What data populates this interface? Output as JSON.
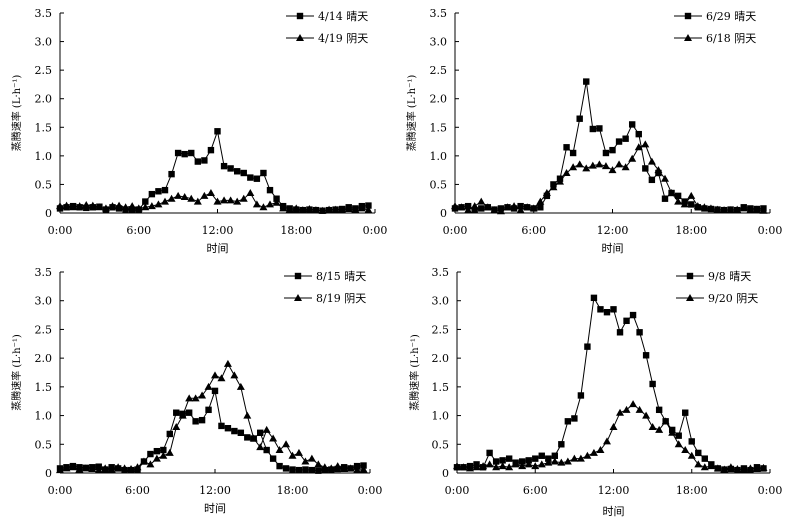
{
  "chart_data": [
    {
      "type": "line",
      "ylabel": "蒸腾速率 (L·h⁻¹)",
      "xlabel": "时间",
      "ylim": [
        0,
        3.5
      ],
      "xlim": [
        0,
        24
      ],
      "yticks": [
        "0",
        "0.5",
        "1.0",
        "1.5",
        "2.0",
        "2.5",
        "3.0",
        "3.5"
      ],
      "xticks": [
        "0:00",
        "6:00",
        "12:00",
        "18:00",
        "0:00"
      ],
      "legend": "top-right",
      "series": [
        {
          "name": "4/14 晴天",
          "marker": "square",
          "x": [
            0,
            0.5,
            1,
            1.5,
            2,
            2.5,
            3,
            3.5,
            4,
            4.5,
            5,
            5.5,
            6,
            6.5,
            7,
            7.5,
            8,
            8.5,
            9,
            9.5,
            10,
            10.5,
            11,
            11.5,
            12,
            12.5,
            13,
            13.5,
            14,
            14.5,
            15,
            15.5,
            16,
            16.5,
            17,
            17.5,
            18,
            18.5,
            19,
            19.5,
            20,
            20.5,
            21,
            21.5,
            22,
            22.5,
            23,
            23.5
          ],
          "y": [
            0.08,
            0.1,
            0.12,
            0.1,
            0.09,
            0.1,
            0.11,
            0.06,
            0.1,
            0.08,
            0.05,
            0.05,
            0.06,
            0.2,
            0.33,
            0.38,
            0.4,
            0.68,
            1.05,
            1.03,
            1.05,
            0.9,
            0.92,
            1.1,
            1.43,
            0.82,
            0.78,
            0.73,
            0.7,
            0.62,
            0.6,
            0.7,
            0.4,
            0.25,
            0.12,
            0.08,
            0.06,
            0.05,
            0.06,
            0.05,
            0.04,
            0.05,
            0.06,
            0.07,
            0.1,
            0.08,
            0.12,
            0.13
          ]
        },
        {
          "name": "4/19 阴天",
          "marker": "triangle",
          "x": [
            0,
            0.5,
            1,
            1.5,
            2,
            2.5,
            3,
            3.5,
            4,
            4.5,
            5,
            5.5,
            6,
            6.5,
            7,
            7.5,
            8,
            8.5,
            9,
            9.5,
            10,
            10.5,
            11,
            11.5,
            12,
            12.5,
            13,
            13.5,
            14,
            14.5,
            15,
            15.5,
            16,
            16.5,
            17,
            17.5,
            18,
            18.5,
            19,
            19.5,
            20,
            20.5,
            21,
            21.5,
            22,
            22.5,
            23,
            23.5
          ],
          "y": [
            0.12,
            0.13,
            0.1,
            0.12,
            0.14,
            0.13,
            0.1,
            0.08,
            0.12,
            0.13,
            0.1,
            0.12,
            0.08,
            0.1,
            0.12,
            0.15,
            0.2,
            0.25,
            0.3,
            0.28,
            0.25,
            0.2,
            0.3,
            0.35,
            0.2,
            0.22,
            0.22,
            0.2,
            0.25,
            0.35,
            0.15,
            0.1,
            0.15,
            0.18,
            0.08,
            0.06,
            0.08,
            0.05,
            0.07,
            0.05,
            0.04,
            0.06,
            0.06,
            0.05,
            0.07,
            0.06,
            0.08,
            0.05
          ]
        }
      ]
    },
    {
      "type": "line",
      "ylabel": "蒸腾速率 (L·h⁻¹)",
      "xlabel": "时间",
      "ylim": [
        0,
        3.5
      ],
      "xlim": [
        0,
        24
      ],
      "yticks": [
        "0",
        "0.5",
        "1.0",
        "1.5",
        "2.0",
        "2.5",
        "3.0",
        "3.5"
      ],
      "xticks": [
        "0:00",
        "6:00",
        "12:00",
        "18:00",
        "0:00"
      ],
      "legend": "top-right",
      "series": [
        {
          "name": "6/29 晴天",
          "marker": "square",
          "x": [
            0,
            0.5,
            1,
            1.5,
            2,
            2.5,
            3,
            3.5,
            4,
            4.5,
            5,
            5.5,
            6,
            6.5,
            7,
            7.5,
            8,
            8.5,
            9,
            9.5,
            10,
            10.5,
            11,
            11.5,
            12,
            12.5,
            13,
            13.5,
            14,
            14.5,
            15,
            15.5,
            16,
            16.5,
            17,
            17.5,
            18,
            18.5,
            19,
            19.5,
            20,
            20.5,
            21,
            21.5,
            22,
            22.5,
            23,
            23.5
          ],
          "y": [
            0.08,
            0.1,
            0.12,
            0.05,
            0.08,
            0.1,
            0.06,
            0.08,
            0.1,
            0.08,
            0.12,
            0.1,
            0.08,
            0.1,
            0.3,
            0.5,
            0.6,
            1.15,
            1.05,
            1.65,
            2.3,
            1.47,
            1.48,
            1.05,
            1.1,
            1.25,
            1.3,
            1.55,
            1.38,
            0.78,
            0.58,
            0.7,
            0.25,
            0.35,
            0.3,
            0.2,
            0.15,
            0.1,
            0.08,
            0.07,
            0.06,
            0.05,
            0.06,
            0.05,
            0.1,
            0.08,
            0.07,
            0.08
          ]
        },
        {
          "name": "6/18 阴天",
          "marker": "triangle",
          "x": [
            0,
            0.5,
            1,
            1.5,
            2,
            2.5,
            3,
            3.5,
            4,
            4.5,
            5,
            5.5,
            6,
            6.5,
            7,
            7.5,
            8,
            8.5,
            9,
            9.5,
            10,
            10.5,
            11,
            11.5,
            12,
            12.5,
            13,
            13.5,
            14,
            14.5,
            15,
            15.5,
            16,
            16.5,
            17,
            17.5,
            18,
            18.5,
            19,
            19.5,
            20,
            20.5,
            21,
            21.5,
            22,
            22.5,
            23,
            23.5
          ],
          "y": [
            0.12,
            0.1,
            0.05,
            0.12,
            0.2,
            0.1,
            0.05,
            0.03,
            0.1,
            0.12,
            0.05,
            0.1,
            0.08,
            0.2,
            0.35,
            0.45,
            0.55,
            0.7,
            0.8,
            0.85,
            0.78,
            0.83,
            0.85,
            0.82,
            0.75,
            0.85,
            0.8,
            0.95,
            1.15,
            1.2,
            0.9,
            0.75,
            0.6,
            0.35,
            0.2,
            0.15,
            0.3,
            0.12,
            0.1,
            0.08,
            0.06,
            0.05,
            0.05,
            0.06,
            0.08,
            0.05,
            0.06,
            0.04
          ]
        }
      ]
    },
    {
      "type": "line",
      "ylabel": "蒸腾速率 (L·h⁻¹)",
      "xlabel": "时间",
      "ylim": [
        0,
        3.5
      ],
      "xlim": [
        0,
        24
      ],
      "yticks": [
        "0",
        "0.5",
        "1.0",
        "1.5",
        "2.0",
        "2.5",
        "3.0",
        "3.5"
      ],
      "xticks": [
        "0:00",
        "6:00",
        "12:00",
        "18:00",
        "0:00"
      ],
      "legend": "top-right",
      "series": [
        {
          "name": "8/15 晴天",
          "marker": "square",
          "x": [
            0,
            0.5,
            1,
            1.5,
            2,
            2.5,
            3,
            3.5,
            4,
            4.5,
            5,
            5.5,
            6,
            6.5,
            7,
            7.5,
            8,
            8.5,
            9,
            9.5,
            10,
            10.5,
            11,
            11.5,
            12,
            12.5,
            13,
            13.5,
            14,
            14.5,
            15,
            15.5,
            16,
            16.5,
            17,
            17.5,
            18,
            18.5,
            19,
            19.5,
            20,
            20.5,
            21,
            21.5,
            22,
            22.5,
            23,
            23.5
          ],
          "y": [
            0.08,
            0.1,
            0.12,
            0.1,
            0.09,
            0.1,
            0.11,
            0.06,
            0.1,
            0.08,
            0.05,
            0.05,
            0.06,
            0.2,
            0.33,
            0.38,
            0.4,
            0.68,
            1.05,
            1.03,
            1.05,
            0.9,
            0.92,
            1.1,
            1.43,
            0.82,
            0.78,
            0.73,
            0.7,
            0.62,
            0.6,
            0.7,
            0.4,
            0.25,
            0.12,
            0.08,
            0.06,
            0.05,
            0.06,
            0.05,
            0.04,
            0.05,
            0.06,
            0.07,
            0.1,
            0.08,
            0.12,
            0.13
          ]
        },
        {
          "name": "8/19 阴天",
          "marker": "triangle",
          "x": [
            0,
            0.5,
            1,
            1.5,
            2,
            2.5,
            3,
            3.5,
            4,
            4.5,
            5,
            5.5,
            6,
            6.5,
            7,
            7.5,
            8,
            8.5,
            9,
            9.5,
            10,
            10.5,
            11,
            11.5,
            12,
            12.5,
            13,
            13.5,
            14,
            14.5,
            15,
            15.5,
            16,
            16.5,
            17,
            17.5,
            18,
            18.5,
            19,
            19.5,
            20,
            20.5,
            21,
            21.5,
            22,
            22.5,
            23,
            23.5
          ],
          "y": [
            0.05,
            0.08,
            0.1,
            0.06,
            0.08,
            0.07,
            0.05,
            0.08,
            0.06,
            0.1,
            0.08,
            0.07,
            0.1,
            0.2,
            0.15,
            0.25,
            0.3,
            0.35,
            0.8,
            1.0,
            1.3,
            1.3,
            1.35,
            1.5,
            1.7,
            1.65,
            1.9,
            1.7,
            1.5,
            1.0,
            0.6,
            0.45,
            0.75,
            0.6,
            0.4,
            0.5,
            0.3,
            0.35,
            0.2,
            0.25,
            0.15,
            0.1,
            0.08,
            0.12,
            0.07,
            0.08,
            0.05,
            0.06
          ]
        }
      ]
    },
    {
      "type": "line",
      "ylabel": "蒸腾速率 (L·h⁻¹)",
      "xlabel": "时间",
      "ylim": [
        0,
        3.5
      ],
      "xlim": [
        0,
        24
      ],
      "yticks": [
        "0",
        "0.5",
        "1.0",
        "1.5",
        "2.0",
        "2.5",
        "3.0",
        "3.5"
      ],
      "xticks": [
        "0:00",
        "6:00",
        "12:00",
        "18:00",
        "0:00"
      ],
      "legend": "top-right",
      "series": [
        {
          "name": "9/8 晴天",
          "marker": "square",
          "x": [
            0,
            0.5,
            1,
            1.5,
            2,
            2.5,
            3,
            3.5,
            4,
            4.5,
            5,
            5.5,
            6,
            6.5,
            7,
            7.5,
            8,
            8.5,
            9,
            9.5,
            10,
            10.5,
            11,
            11.5,
            12,
            12.5,
            13,
            13.5,
            14,
            14.5,
            15,
            15.5,
            16,
            16.5,
            17,
            17.5,
            18,
            18.5,
            19,
            19.5,
            20,
            20.5,
            21,
            21.5,
            22,
            22.5,
            23,
            23.5
          ],
          "y": [
            0.1,
            0.1,
            0.12,
            0.15,
            0.1,
            0.35,
            0.2,
            0.22,
            0.25,
            0.18,
            0.2,
            0.22,
            0.25,
            0.3,
            0.25,
            0.3,
            0.5,
            0.9,
            0.95,
            1.35,
            2.2,
            3.05,
            2.85,
            2.8,
            2.85,
            2.45,
            2.65,
            2.75,
            2.45,
            2.05,
            1.55,
            1.1,
            0.9,
            0.75,
            0.65,
            1.05,
            0.55,
            0.35,
            0.25,
            0.15,
            0.08,
            0.06,
            0.07,
            0.05,
            0.08,
            0.05,
            0.1,
            0.08
          ]
        },
        {
          "name": "9/20 阴天",
          "marker": "triangle",
          "x": [
            0,
            0.5,
            1,
            1.5,
            2,
            2.5,
            3,
            3.5,
            4,
            4.5,
            5,
            5.5,
            6,
            6.5,
            7,
            7.5,
            8,
            8.5,
            9,
            9.5,
            10,
            10.5,
            11,
            11.5,
            12,
            12.5,
            13,
            13.5,
            14,
            14.5,
            15,
            15.5,
            16,
            16.5,
            17,
            17.5,
            18,
            18.5,
            19,
            19.5,
            20,
            20.5,
            21,
            21.5,
            22,
            22.5,
            23,
            23.5
          ],
          "y": [
            0.12,
            0.1,
            0.08,
            0.1,
            0.12,
            0.15,
            0.1,
            0.12,
            0.1,
            0.15,
            0.12,
            0.15,
            0.12,
            0.15,
            0.18,
            0.2,
            0.18,
            0.2,
            0.25,
            0.25,
            0.3,
            0.35,
            0.4,
            0.55,
            0.8,
            1.05,
            1.1,
            1.2,
            1.1,
            1.0,
            0.8,
            0.75,
            0.9,
            0.7,
            0.5,
            0.4,
            0.3,
            0.15,
            0.1,
            0.12,
            0.08,
            0.06,
            0.1,
            0.07,
            0.06,
            0.08,
            0.07,
            0.09
          ]
        }
      ]
    }
  ]
}
